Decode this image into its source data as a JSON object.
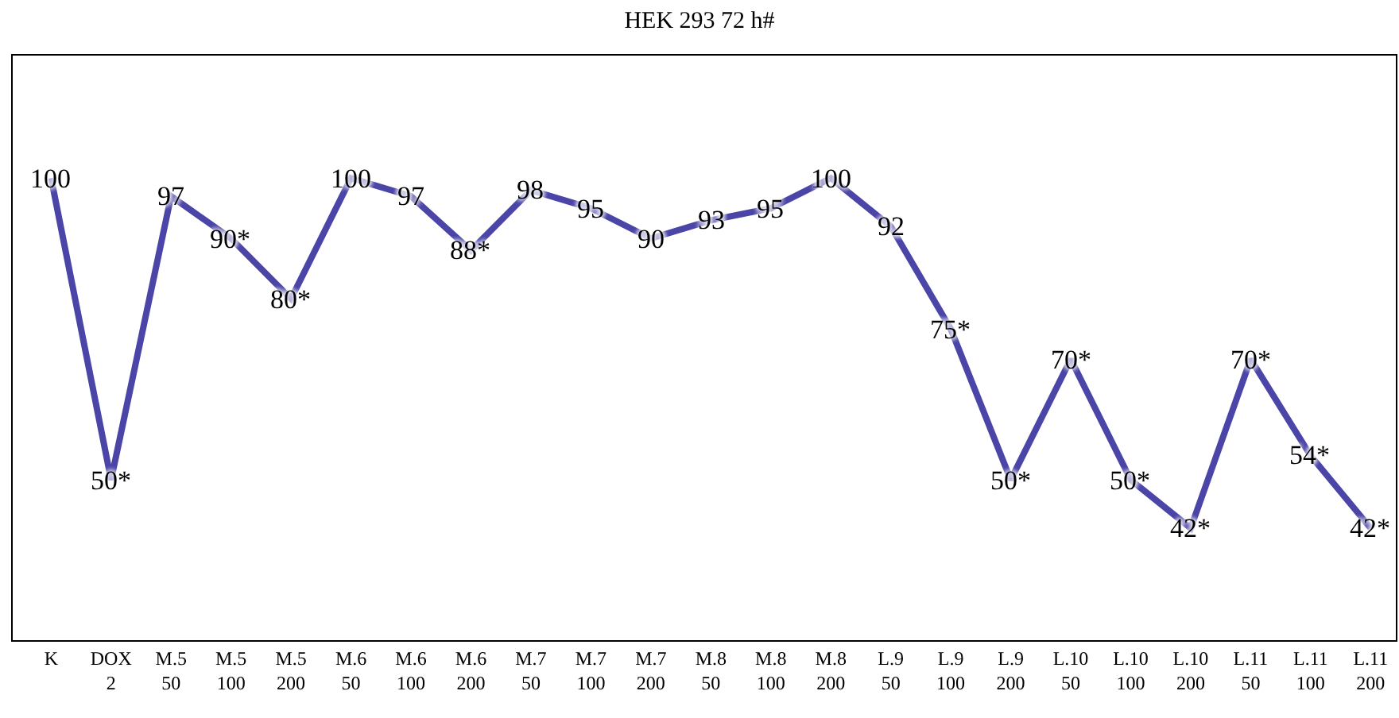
{
  "chart_data": {
    "type": "line",
    "title": "HEK 293 72 h#",
    "categories": [
      "K",
      "DOX 2",
      "M.5 50",
      "M.5 100",
      "M.5 200",
      "M.6 50",
      "M.6 100",
      "M.6 200",
      "M.7 50",
      "M.7 100",
      "M.7 200",
      "M.8 50",
      "M.8 100",
      "M.8 200",
      "L.9 50",
      "L.9 100",
      "L.9 200",
      "L.10 50",
      "L.10 100",
      "L.10 200",
      "L.11 50",
      "L.11 100",
      "L.11 200"
    ],
    "series": [
      {
        "color": "#4b45a8",
        "values": [
          100,
          50,
          97,
          90,
          80,
          100,
          97,
          88,
          98,
          95,
          90,
          93,
          95,
          100,
          92,
          75,
          50,
          70,
          50,
          42,
          70,
          54,
          42
        ],
        "value_labels": [
          "100",
          "50*",
          "97",
          "90*",
          "80*",
          "100",
          "97",
          "88*",
          "98",
          "95",
          "90",
          "93",
          "95",
          "100",
          "92",
          "75*",
          "50*",
          "70*",
          "50*",
          "42*",
          "70*",
          "54*",
          "42*"
        ]
      }
    ],
    "grid": false,
    "legend": false,
    "marker": "none",
    "line_style": "solid"
  }
}
